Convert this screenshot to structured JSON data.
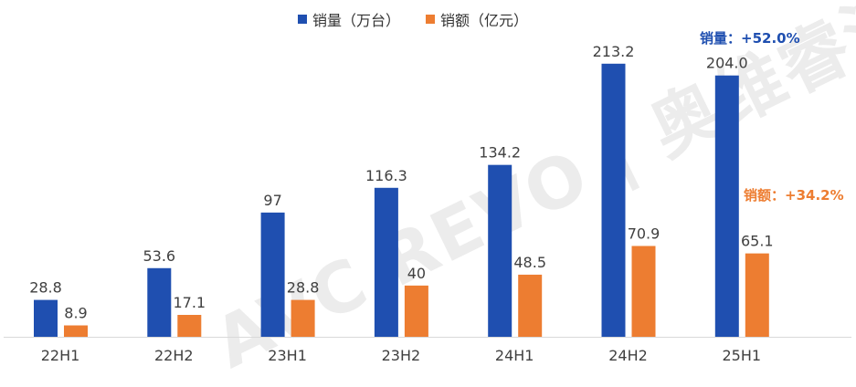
{
  "legend": {
    "sales_label": "销量（万台）",
    "revenue_label": "销额（亿元）"
  },
  "annotations": {
    "sales_growth": "销量：+52.0%",
    "revenue_growth": "销额：+34.2%"
  },
  "watermark": "AVC REVO | 奥维睿沃",
  "colors": {
    "sales": "#1f4fb0",
    "revenue": "#ed7d31"
  },
  "chart_data": {
    "type": "bar",
    "categories": [
      "22H1",
      "22H2",
      "23H1",
      "23H2",
      "24H1",
      "24H2",
      "25H1"
    ],
    "series": [
      {
        "name": "销量（万台）",
        "values": [
          28.8,
          53.6,
          97,
          116.3,
          134.2,
          213.2,
          204.0
        ],
        "labels": [
          "28.8",
          "53.6",
          "97",
          "116.3",
          "134.2",
          "213.2",
          "204.0"
        ]
      },
      {
        "name": "销额（亿元）",
        "values": [
          8.9,
          17.1,
          28.8,
          40,
          48.5,
          70.9,
          65.1
        ],
        "labels": [
          "8.9",
          "17.1",
          "28.8",
          "40",
          "48.5",
          "70.9",
          "65.1"
        ]
      }
    ],
    "ylim": [
      0,
      240
    ]
  }
}
